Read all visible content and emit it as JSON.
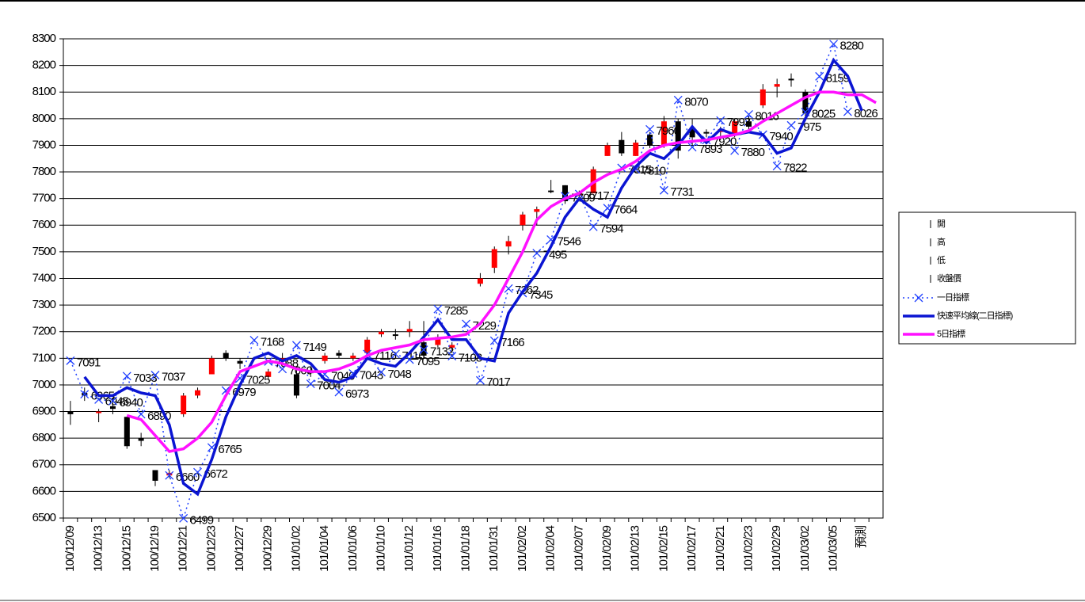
{
  "chart_data": {
    "type": "candlestick",
    "categories": [
      "100/12/09",
      null,
      "100/12/13",
      null,
      "100/12/15",
      null,
      "100/12/19",
      null,
      "100/12/21",
      null,
      "100/12/23",
      null,
      "100/12/27",
      null,
      "100/12/29",
      null,
      "101/01/02",
      null,
      "101/01/04",
      null,
      "101/01/06",
      null,
      "101/01/10",
      null,
      "101/01/12",
      null,
      "101/01/16",
      null,
      "101/01/18",
      null,
      "101/01/31",
      null,
      "101/02/02",
      null,
      "101/02/04",
      null,
      "101/02/07",
      null,
      "101/02/09",
      null,
      "101/02/13",
      null,
      "101/02/15",
      null,
      "101/02/17",
      null,
      "101/02/21",
      null,
      "101/02/23",
      null,
      "101/02/29",
      null,
      "101/03/02",
      null,
      "101/03/05",
      null,
      "預測",
      null
    ],
    "ylim": [
      6500,
      8300
    ],
    "yticks": [
      6500,
      6600,
      6700,
      6800,
      6900,
      7000,
      7100,
      7200,
      7300,
      7400,
      7500,
      7600,
      7700,
      7800,
      7900,
      8000,
      8100,
      8200,
      8300
    ],
    "grid": true,
    "candles": {
      "names": [
        "開",
        "高",
        "低",
        "收盤價"
      ],
      "up_color": "#ff0000",
      "down_color": "#000000",
      "open": [
        6900,
        6970,
        6895,
        6920,
        6880,
        6800,
        6680,
        6660,
        6890,
        6960,
        7040,
        7120,
        7090,
        null,
        7030,
        7090,
        7040,
        7050,
        7090,
        7120,
        7100,
        7120,
        7190,
        7190,
        7200,
        7160,
        7150,
        7140,
        null,
        7380,
        7440,
        7520,
        7600,
        7650,
        7730,
        7750,
        7710,
        7720,
        7860,
        7920,
        7860,
        7940,
        7900,
        7990,
        7960,
        7950,
        7950,
        7940,
        7990,
        8050,
        8120,
        8150,
        8100,
        null,
        null,
        null,
        null,
        null
      ],
      "high": [
        6940,
        6990,
        6910,
        6950,
        6880,
        6820,
        6680,
        6680,
        6970,
        6990,
        7110,
        7130,
        7100,
        null,
        7060,
        7120,
        7060,
        7070,
        7120,
        7130,
        7120,
        7180,
        7210,
        7210,
        7240,
        7240,
        7190,
        7160,
        null,
        7420,
        7520,
        7560,
        7650,
        7670,
        7770,
        7750,
        7730,
        7820,
        7910,
        7950,
        7920,
        7950,
        8010,
        8000,
        8000,
        7960,
        7970,
        8000,
        8010,
        8130,
        8150,
        8170,
        8110,
        null,
        null,
        null,
        null,
        null
      ],
      "low": [
        6850,
        6940,
        6860,
        6890,
        6760,
        6770,
        6620,
        6650,
        6880,
        6950,
        7040,
        7090,
        7060,
        null,
        7020,
        7080,
        6950,
        7030,
        7080,
        7100,
        7090,
        7110,
        7180,
        7170,
        7180,
        7100,
        7140,
        7120,
        null,
        7370,
        7420,
        7490,
        7580,
        7600,
        7720,
        7680,
        7700,
        7720,
        7860,
        7860,
        7860,
        7890,
        7890,
        7850,
        7900,
        7930,
        7920,
        7930,
        7950,
        8040,
        8080,
        8120,
        8010,
        null,
        null,
        null,
        null,
        null
      ],
      "close": [
        6890,
        6960,
        6900,
        6910,
        6770,
        6790,
        6640,
        6670,
        6960,
        6980,
        7100,
        7100,
        7080,
        null,
        7050,
        7100,
        6960,
        7050,
        7110,
        7110,
        7110,
        7170,
        7200,
        7190,
        7210,
        7110,
        7180,
        7150,
        null,
        7400,
        7510,
        7540,
        7640,
        7660,
        7730,
        7690,
        7720,
        7810,
        7900,
        7870,
        7910,
        7900,
        7990,
        7880,
        7930,
        7950,
        7960,
        7990,
        7970,
        8110,
        8130,
        8150,
        8020,
        null,
        null,
        null,
        null,
        null
      ]
    },
    "series": [
      {
        "name": "一日指標",
        "color": "#1f3fff",
        "style": "dotted",
        "marker": "x",
        "labels": true,
        "values": [
          7091,
          6965,
          6945,
          6940,
          7033,
          6890,
          7037,
          6660,
          6499,
          6672,
          6765,
          6979,
          7025,
          7168,
          7088,
          7060,
          7149,
          7004,
          7040,
          6973,
          7043,
          7116,
          7048,
          7116,
          7095,
          7132,
          7285,
          7108,
          7229,
          7017,
          7166,
          7362,
          7345,
          7495,
          7546,
          7709,
          7717,
          7594,
          7664,
          7815,
          7810,
          7960,
          7731,
          8070,
          7893,
          7920,
          7993,
          7880,
          8016,
          7940,
          7822,
          7975,
          8025,
          8159,
          8280,
          8026,
          null,
          null
        ]
      },
      {
        "name": "快速平均線(二日指標)",
        "color": "#0a14d2",
        "style": "solid",
        "marker": null,
        "labels": false,
        "values": [
          null,
          7030,
          6960,
          6960,
          6990,
          6970,
          6960,
          6850,
          6630,
          6590,
          6720,
          6880,
          7000,
          7100,
          7120,
          7090,
          7110,
          7080,
          7020,
          7010,
          7030,
          7100,
          7080,
          7070,
          7120,
          7180,
          7245,
          7170,
          7170,
          7100,
          7090,
          7270,
          7350,
          7420,
          7520,
          7630,
          7700,
          7660,
          7630,
          7740,
          7820,
          7870,
          7850,
          7900,
          7970,
          7910,
          7960,
          7940,
          7950,
          7940,
          7870,
          7890,
          8000,
          8100,
          8220,
          8160,
          8030,
          null
        ]
      },
      {
        "name": "5日指標",
        "color": "#ff10ff",
        "style": "solid",
        "marker": null,
        "labels": false,
        "values": [
          null,
          null,
          null,
          null,
          6885,
          6870,
          6810,
          6750,
          6760,
          6800,
          6860,
          6960,
          7050,
          7070,
          7090,
          7080,
          7060,
          7050,
          7050,
          7060,
          7080,
          7110,
          7130,
          7140,
          7150,
          7170,
          7175,
          7180,
          7190,
          7230,
          7300,
          7400,
          7500,
          7620,
          7670,
          7700,
          7720,
          7760,
          7790,
          7810,
          7840,
          7880,
          7900,
          7910,
          7915,
          7920,
          7930,
          7940,
          7955,
          7990,
          8020,
          8050,
          8080,
          8100,
          8100,
          8090,
          8090,
          8060
        ]
      }
    ]
  }
}
